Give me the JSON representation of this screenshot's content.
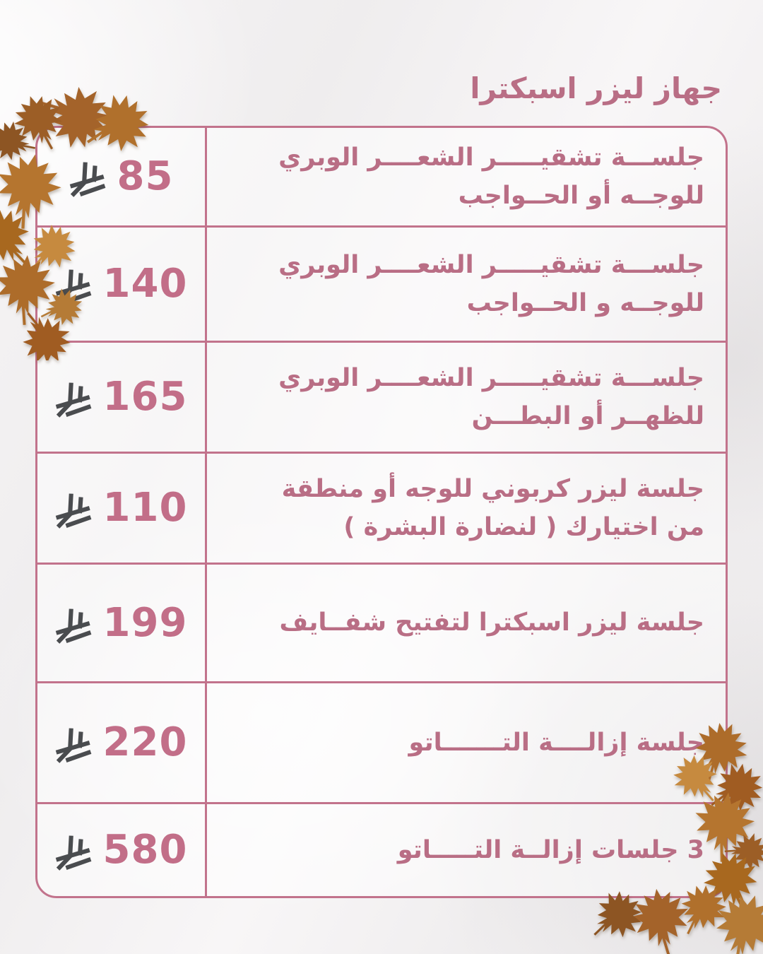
{
  "page": {
    "title": "جهاز ليزر اسبكترا",
    "language": "ar",
    "currency_icon": "saudi-riyal-icon",
    "decoration": "autumn-maple-leaves",
    "colors": {
      "pink_text": "#b96e85",
      "pink_price": "#c26e88",
      "pink_border": "#c2738c",
      "riyal_gray": "#4a4c4f",
      "background": "#f4f2f3",
      "leaf_orange": "#b0702c"
    }
  },
  "table": {
    "rows": [
      {
        "price": "85",
        "description_lines": [
          "جلســـة تشقيـــــر الشعــــر الوبري",
          "للوجــه أو الحــواجب"
        ]
      },
      {
        "price": "140",
        "description_lines": [
          "جلســـة تشقيـــــر الشعــــر الوبري",
          "للوجــه و الحــواجب"
        ]
      },
      {
        "price": "165",
        "description_lines": [
          "جلســـة تشقيـــــر الشعــــر الوبري",
          "للظهــر أو البطـــن"
        ]
      },
      {
        "price": "110",
        "description_lines": [
          "جلسة ليزر كربوني للوجه أو منطقة",
          "من اختيارك ( لنضارة البشرة )"
        ]
      },
      {
        "price": "199",
        "description_lines": [
          "جلسة ليزر اسبكترا لتفتيح شفــايف"
        ]
      },
      {
        "price": "220",
        "description_lines": [
          "جلسة إزالــــة التـــــــاتو"
        ]
      },
      {
        "price": "580",
        "description_lines": [
          "3 جلسات إزالــة التـــــاتو"
        ]
      }
    ]
  }
}
